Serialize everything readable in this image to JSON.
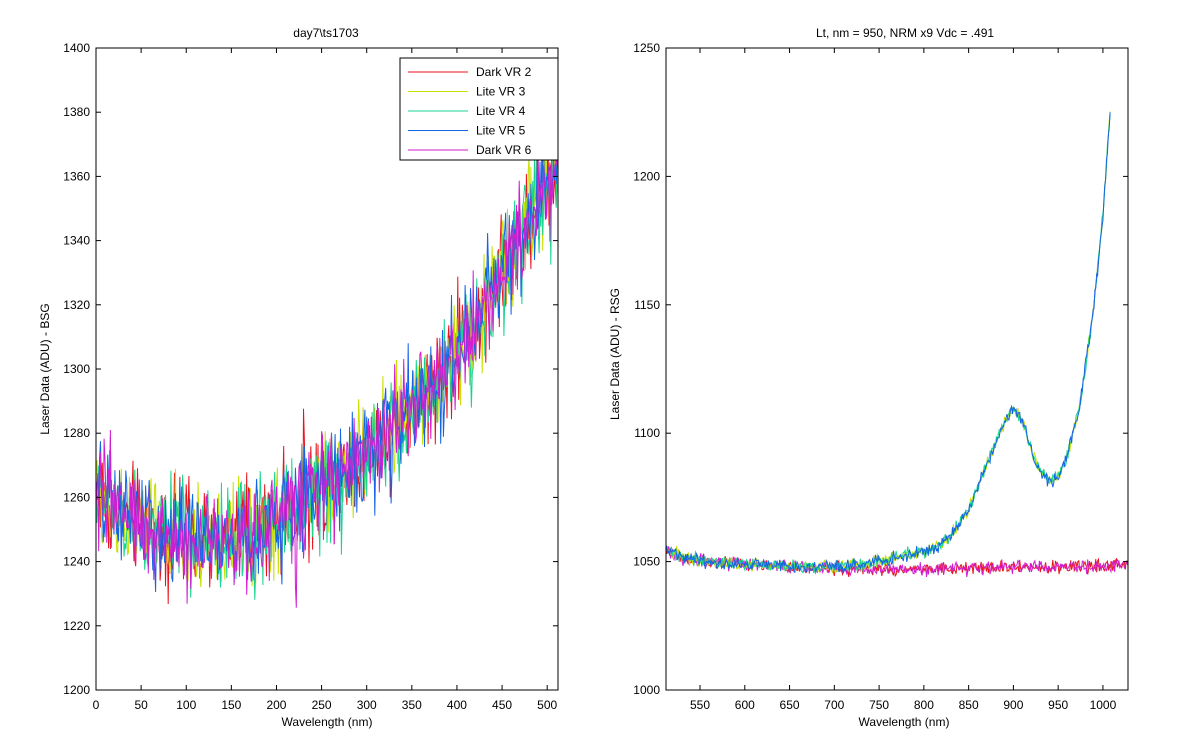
{
  "chart_data": [
    {
      "type": "line",
      "title": "day7\\ts1703",
      "xlabel": "Wavelength (nm)",
      "ylabel": "Laser Data (ADU) - BSG",
      "xlim": [
        0,
        512
      ],
      "ylim": [
        1200,
        1400
      ],
      "xticks": [
        0,
        50,
        100,
        150,
        200,
        250,
        300,
        350,
        400,
        450,
        500
      ],
      "yticks": [
        1200,
        1220,
        1240,
        1260,
        1280,
        1300,
        1320,
        1340,
        1360,
        1380,
        1400
      ],
      "legend_position": "top-right",
      "legend": [
        "Dark VR 2",
        "Lite VR 3",
        "Lite VR 4",
        "Lite VR 5",
        "Dark VR 6"
      ],
      "series_colors": [
        "#e8141c",
        "#c8e000",
        "#18d490",
        "#1464e6",
        "#d21ed2"
      ],
      "curve": {
        "x": [
          0,
          25,
          50,
          75,
          100,
          125,
          150,
          175,
          200,
          225,
          250,
          275,
          300,
          325,
          350,
          375,
          400,
          425,
          450,
          475,
          500,
          512
        ],
        "y": [
          1262,
          1256,
          1252,
          1249,
          1247,
          1246,
          1247,
          1249,
          1253,
          1258,
          1264,
          1269,
          1274,
          1280,
          1287,
          1295,
          1305,
          1316,
          1330,
          1343,
          1356,
          1362
        ]
      },
      "noise_amplitude": 8
    },
    {
      "type": "line",
      "title": "Lt, nm = 950, NRM x9 Vdc = .491",
      "xlabel": "Wavelength (nm)",
      "ylabel": "Laser Data (ADU) - RSG",
      "xlim": [
        512,
        1028
      ],
      "ylim": [
        1000,
        1250
      ],
      "xticks": [
        550,
        600,
        650,
        700,
        750,
        800,
        850,
        900,
        950,
        1000
      ],
      "yticks": [
        1000,
        1050,
        1100,
        1150,
        1200,
        1250
      ],
      "series_colors": [
        "#e8141c",
        "#c8e000",
        "#18d490",
        "#1464e6",
        "#d21ed2"
      ],
      "lite_curve": {
        "x": [
          512,
          530,
          560,
          600,
          650,
          700,
          730,
          760,
          790,
          810,
          830,
          850,
          870,
          890,
          900,
          910,
          925,
          940,
          950,
          960,
          975,
          990,
          1000,
          1008
        ],
        "y": [
          1055,
          1052,
          1050,
          1049,
          1048,
          1048,
          1049,
          1051,
          1053,
          1055,
          1060,
          1070,
          1088,
          1104,
          1110,
          1105,
          1088,
          1081,
          1083,
          1091,
          1112,
          1150,
          1185,
          1225
        ]
      },
      "dark_curve": {
        "x": [
          512,
          530,
          560,
          600,
          650,
          700,
          750,
          800,
          850,
          900,
          950,
          1000,
          1028
        ],
        "y": [
          1054,
          1051,
          1050,
          1049,
          1048,
          1047,
          1047,
          1047,
          1047,
          1048,
          1048,
          1048,
          1049
        ]
      },
      "noise_amplitude": 1.2
    }
  ]
}
